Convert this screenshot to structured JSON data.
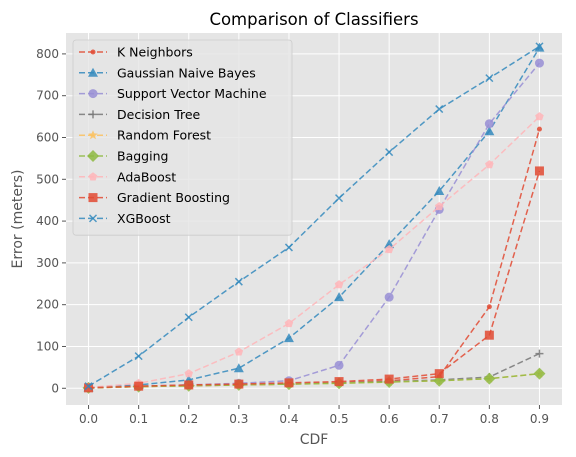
{
  "chart_data": {
    "type": "line",
    "title": "Comparison of Classifiers",
    "xlabel": "CDF",
    "ylabel": "Error (meters)",
    "x": [
      0.0,
      0.1,
      0.2,
      0.3,
      0.4,
      0.5,
      0.6,
      0.7,
      0.8,
      0.9
    ],
    "x_tick_labels": [
      "0.0",
      "0.1",
      "0.2",
      "0.3",
      "0.4",
      "0.5",
      "0.6",
      "0.7",
      "0.8",
      "0.9"
    ],
    "y_ticks": [
      0,
      100,
      200,
      300,
      400,
      500,
      600,
      700,
      800
    ],
    "y_tick_labels": [
      "0",
      "100",
      "200",
      "300",
      "400",
      "500",
      "600",
      "700",
      "800"
    ],
    "xlim": [
      -0.045,
      0.945
    ],
    "ylim": [
      -40,
      850
    ],
    "grid": true,
    "legend_position": "top-left",
    "series": [
      {
        "name": "K Neighbors",
        "color": "#E24A33",
        "marker": "dot",
        "values": [
          1,
          4,
          6,
          8,
          10,
          13,
          18,
          28,
          195,
          620
        ]
      },
      {
        "name": "Gaussian Naive Bayes",
        "color": "#348ABD",
        "marker": "triangle",
        "values": [
          2,
          8,
          20,
          48,
          120,
          218,
          345,
          472,
          615,
          815
        ]
      },
      {
        "name": "Support Vector Machine",
        "color": "#988ED5",
        "marker": "circle",
        "values": [
          1,
          5,
          8,
          12,
          18,
          55,
          218,
          428,
          633,
          778
        ]
      },
      {
        "name": "Decision Tree",
        "color": "#777777",
        "marker": "plus",
        "values": [
          1,
          5,
          7,
          9,
          11,
          13,
          16,
          20,
          27,
          83
        ]
      },
      {
        "name": "Random Forest",
        "color": "#FBC15E",
        "marker": "star",
        "values": [
          1,
          4,
          6,
          8,
          10,
          12,
          15,
          18,
          23,
          35
        ]
      },
      {
        "name": "Bagging",
        "color": "#8EBA42",
        "marker": "diamond",
        "values": [
          1,
          4,
          6,
          8,
          10,
          12,
          15,
          18,
          23,
          35
        ]
      },
      {
        "name": "AdaBoost",
        "color": "#FFB5B8",
        "marker": "pentagon",
        "values": [
          2,
          12,
          35,
          87,
          155,
          248,
          332,
          435,
          535,
          650
        ]
      },
      {
        "name": "Gradient Boosting",
        "color": "#E24A33",
        "marker": "square",
        "values": [
          1,
          5,
          8,
          10,
          13,
          16,
          22,
          35,
          127,
          520
        ]
      },
      {
        "name": "XGBoost",
        "color": "#348ABD",
        "marker": "x",
        "values": [
          5,
          77,
          170,
          255,
          337,
          455,
          565,
          668,
          742,
          818
        ]
      }
    ]
  }
}
